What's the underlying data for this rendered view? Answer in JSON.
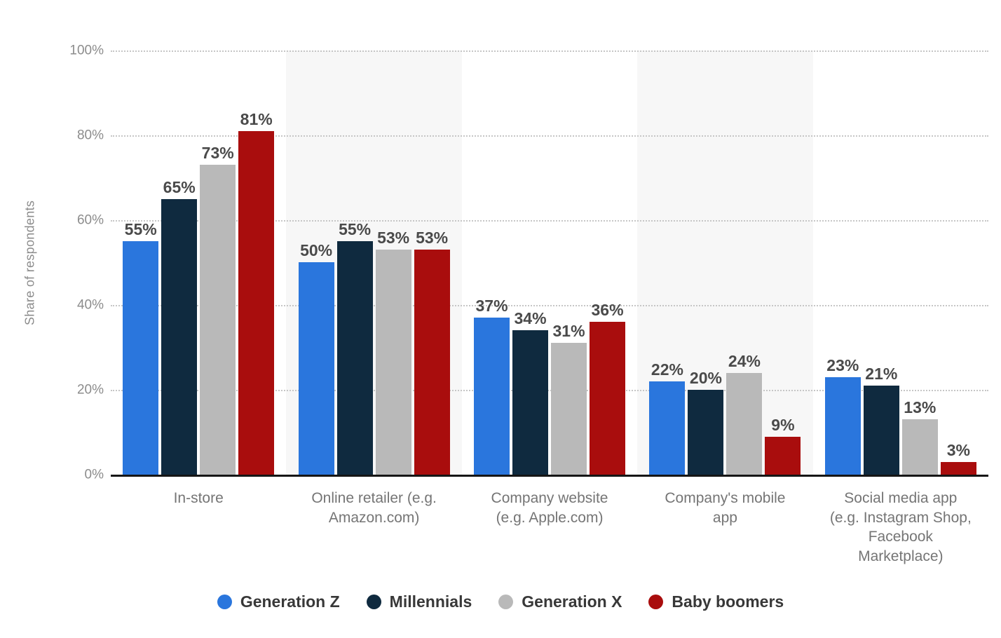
{
  "y_axis": {
    "title": "Share of respondents",
    "ticks": [
      "100%",
      "80%",
      "60%",
      "40%",
      "20%",
      "0%"
    ]
  },
  "chart_data": {
    "type": "bar",
    "title": "",
    "xlabel": "",
    "ylabel": "Share of respondents",
    "ylim": [
      0,
      100
    ],
    "ytick_step": 20,
    "grid": "horizontal-dotted",
    "legend_position": "bottom",
    "value_suffix": "%",
    "categories": [
      "In-store",
      "Online retailer (e.g. Amazon.com)",
      "Company website (e.g. Apple.com)",
      "Company's mobile app",
      "Social media app (e.g. Instagram Shop, Facebook Marketplace)"
    ],
    "category_lines": [
      [
        "In-store"
      ],
      [
        "Online retailer (e.g.",
        "Amazon.com)"
      ],
      [
        "Company website",
        "(e.g. Apple.com)"
      ],
      [
        "Company's mobile",
        "app"
      ],
      [
        "Social media app",
        "(e.g. Instagram Shop,",
        "Facebook",
        "Marketplace)"
      ]
    ],
    "series": [
      {
        "name": "Generation Z",
        "color": "#2a76dd",
        "values": [
          55,
          50,
          37,
          22,
          23
        ]
      },
      {
        "name": "Millennials",
        "color": "#0f2a3f",
        "values": [
          65,
          55,
          34,
          20,
          21
        ]
      },
      {
        "name": "Generation X",
        "color": "#b9b9b9",
        "values": [
          73,
          53,
          31,
          24,
          13
        ]
      },
      {
        "name": "Baby boomers",
        "color": "#a90d0d",
        "values": [
          81,
          53,
          36,
          9,
          3
        ]
      }
    ],
    "plot_bands_behind_categories": [
      2,
      4
    ],
    "data_labels_shown": true
  },
  "colors": {
    "background": "#ffffff",
    "plot_band": "#f7f7f7",
    "gridline": "#c6c6c6",
    "axis_line": "#161616",
    "tick_label": "#8c8c8c",
    "category_label": "#757575",
    "value_label": "#4a4a4a",
    "legend_label": "#383838"
  }
}
